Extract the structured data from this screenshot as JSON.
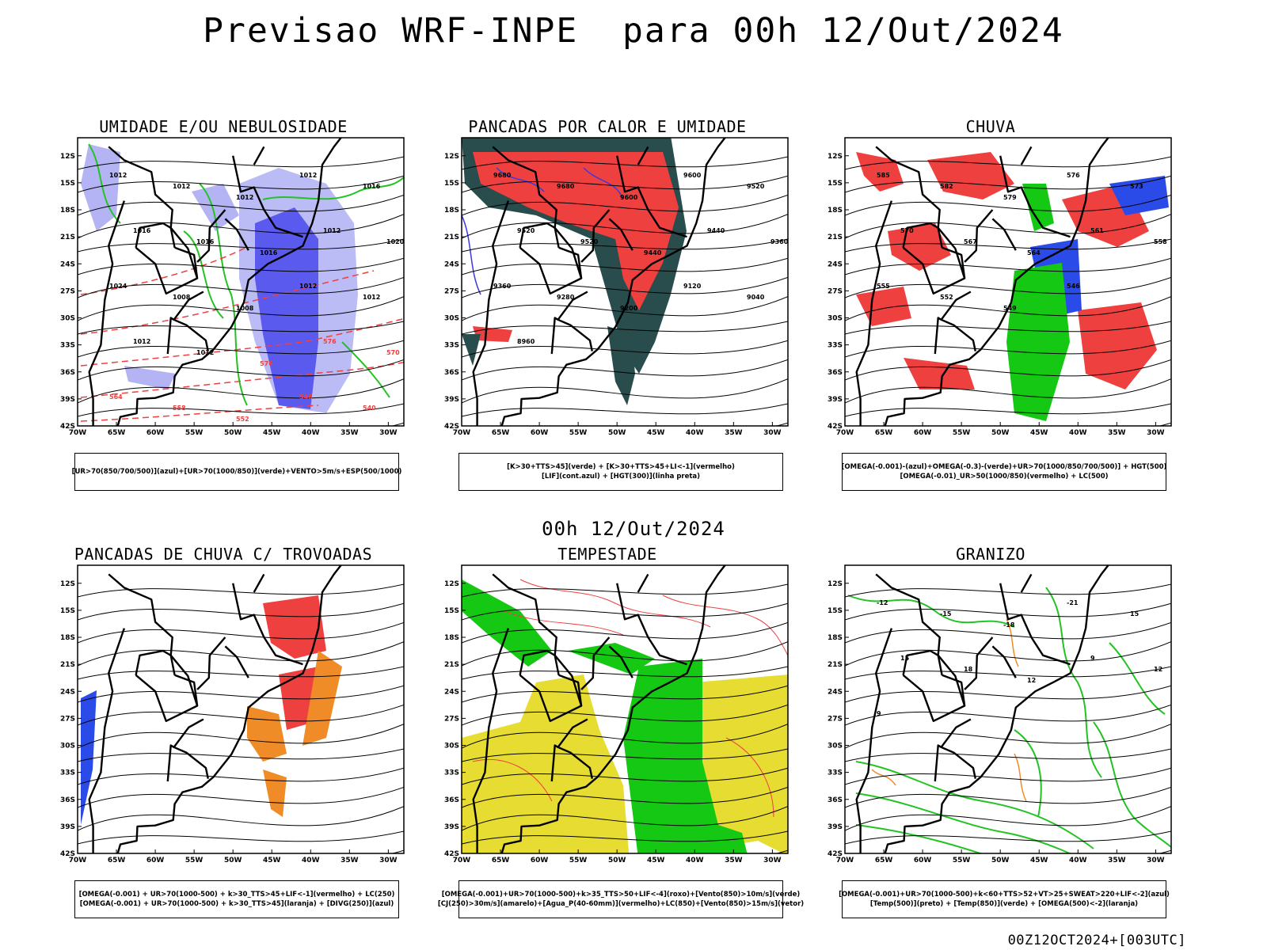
{
  "title": "Previsao WRF-INPE  para 00h 12/Out/2024",
  "mid_title": "00h 12/Out/2024",
  "footer": "00Z12OCT2024+[003UTC]",
  "axes": {
    "lat_labels": [
      "12S",
      "15S",
      "18S",
      "21S",
      "24S",
      "27S",
      "30S",
      "33S",
      "36S",
      "39S",
      "42S"
    ],
    "lon_labels": [
      "70W",
      "65W",
      "60W",
      "55W",
      "50W",
      "45W",
      "40W",
      "35W",
      "30W"
    ],
    "lat_range": [
      -42,
      -10
    ],
    "lon_range": [
      -70,
      -28
    ]
  },
  "colors": {
    "map_line": "#000000",
    "humidity_blue": "#5a5aef",
    "light_blue": "#b4b4f5",
    "green": "#22c322",
    "red": "#ef4040",
    "dark_teal": "#294d4d",
    "orange": "#f08c28",
    "yellow": "#e6dc32",
    "bright_green": "#14c814"
  },
  "panels": [
    {
      "id": "p1",
      "title": "UMIDADE E/OU NEBULOSIDADE",
      "legend": [
        "[UR>70(850/700/500)](azul)+[UR>70(1000/850)](verde)+VENTO>5m/s+ESP(500/1000)"
      ],
      "contour_labels": [
        "1012",
        "1012",
        "1012",
        "1012",
        "1016",
        "1016",
        "1016",
        "1016",
        "1012",
        "1020",
        "1024",
        "1008",
        "1008",
        "1012",
        "1012",
        "1012",
        "1012",
        "576",
        "576",
        "570",
        "564",
        "558",
        "552",
        "546",
        "540"
      ]
    },
    {
      "id": "p2",
      "title": "PANCADAS POR CALOR E UMIDADE",
      "legend": [
        "[K>30+TTS>45](verde) + [K>30+TTS>45+LI<-1](vermelho)",
        "[LIF](cont.azul) + [HGT(300)](linha preta)"
      ],
      "contour_labels": [
        "9680",
        "9680",
        "9600",
        "9600",
        "9520",
        "9520",
        "9520",
        "9440",
        "9440",
        "9360",
        "9360",
        "9280",
        "9200",
        "9120",
        "9040",
        "8960"
      ]
    },
    {
      "id": "p3",
      "title": "CHUVA",
      "legend": [
        "[OMEGA(-0.001)-(azul)+OMEGA(-0.3)-(verde)+UR>70(1000/850/700/500)] + HGT(500)",
        "[OMEGA(-0.01)_UR>50(1000/850)(vermelho) + LC(500)"
      ],
      "contour_labels": [
        "585",
        "582",
        "579",
        "576",
        "573",
        "570",
        "567",
        "564",
        "561",
        "558",
        "555",
        "552",
        "549",
        "546"
      ]
    },
    {
      "id": "p4",
      "title": "PANCADAS DE CHUVA C/ TROVOADAS",
      "legend": [
        "[OMEGA(-0.001) + UR>70(1000-500) + k>30_TTS>45+LIF<-1](vermelho) + LC(250)",
        "[OMEGA(-0.001) + UR>70(1000-500) + k>30_TTS>45](laranja) + [DIVG(250)](azul)"
      ],
      "contour_labels": []
    },
    {
      "id": "p5",
      "title": "TEMPESTADE",
      "legend": [
        "[OMEGA(-0.001)+UR>70(1000-500)+k>35_TTS>50+LIF<-4](roxo)+[Vento(850)>10m/s](verde)",
        "[CJ(250)>30m/s](amarelo)+[Agua_P(40-60mm)](vermelho)+LC(850)+[Vento(850)>15m/s](vetor)"
      ],
      "contour_labels": []
    },
    {
      "id": "p6",
      "title": "GRANIZO",
      "legend": [
        "[OMEGA(-0.001)+UR>70(1000-500)+k<60+TTS>52+VT>25+SWEAT>220+LIF<-2](azul)",
        "[Temp(500)](preto) + [Temp(850)](verde) + [OMEGA(500)<-2](laranja)"
      ],
      "contour_labels": [
        "-12",
        "-15",
        "-18",
        "-21",
        "15",
        "15",
        "18",
        "12",
        "9",
        "12",
        "9"
      ]
    }
  ]
}
